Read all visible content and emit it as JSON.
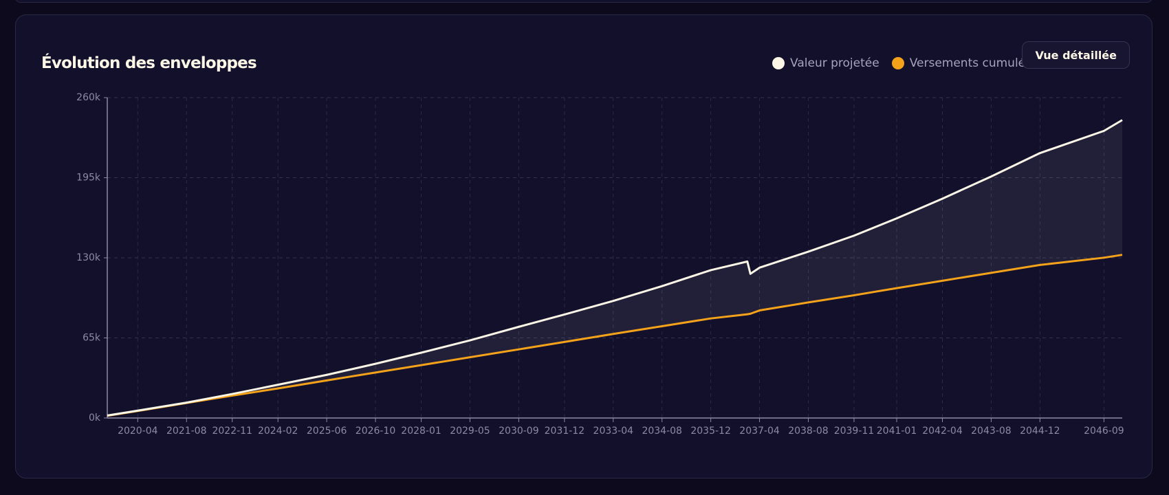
{
  "chart_data": {
    "type": "line",
    "title": "Évolution des enveloppes",
    "button": "Vue détaillée",
    "x": [
      "2019-06",
      "2020-04",
      "2021-08",
      "2022-11",
      "2024-02",
      "2025-06",
      "2026-10",
      "2028-01",
      "2029-05",
      "2030-09",
      "2031-12",
      "2033-04",
      "2034-08",
      "2035-12",
      "2036-12",
      "2037-01",
      "2037-04",
      "2038-08",
      "2039-11",
      "2041-01",
      "2042-04",
      "2043-08",
      "2044-12",
      "2046-09",
      "2047-03"
    ],
    "xlim": [
      "2019-06",
      "2047-03"
    ],
    "xticks": [
      "2020-04",
      "2021-08",
      "2022-11",
      "2024-02",
      "2025-06",
      "2026-10",
      "2028-01",
      "2029-05",
      "2030-09",
      "2031-12",
      "2033-04",
      "2034-08",
      "2035-12",
      "2037-04",
      "2038-08",
      "2039-11",
      "2041-01",
      "2042-04",
      "2043-08",
      "2044-12",
      "2046-09"
    ],
    "ylim": [
      0,
      260000
    ],
    "yticks": [
      {
        "value": 0,
        "label": "0k"
      },
      {
        "value": 65000,
        "label": "65k"
      },
      {
        "value": 130000,
        "label": "130k"
      },
      {
        "value": 195000,
        "label": "195k"
      },
      {
        "value": 260000,
        "label": "260k"
      }
    ],
    "grid": true,
    "fill_between": true,
    "series": [
      {
        "name": "Valeur projetée",
        "color": "#fbf6e6",
        "values": [
          2000,
          6000,
          12500,
          19500,
          27000,
          35000,
          44000,
          53000,
          63000,
          74000,
          84000,
          95000,
          107000,
          120000,
          127000,
          117000,
          122000,
          135000,
          148000,
          162000,
          178000,
          196000,
          215000,
          233000,
          241800
        ]
      },
      {
        "name": "Versements cumulés",
        "color": "#f5a21b",
        "values": [
          1800,
          5700,
          12200,
          18200,
          24000,
          30500,
          36900,
          42900,
          49300,
          55700,
          61700,
          68200,
          74500,
          80800,
          84200,
          84600,
          87300,
          93800,
          99600,
          105400,
          111400,
          117800,
          124200,
          130100,
          132400
        ]
      }
    ]
  }
}
